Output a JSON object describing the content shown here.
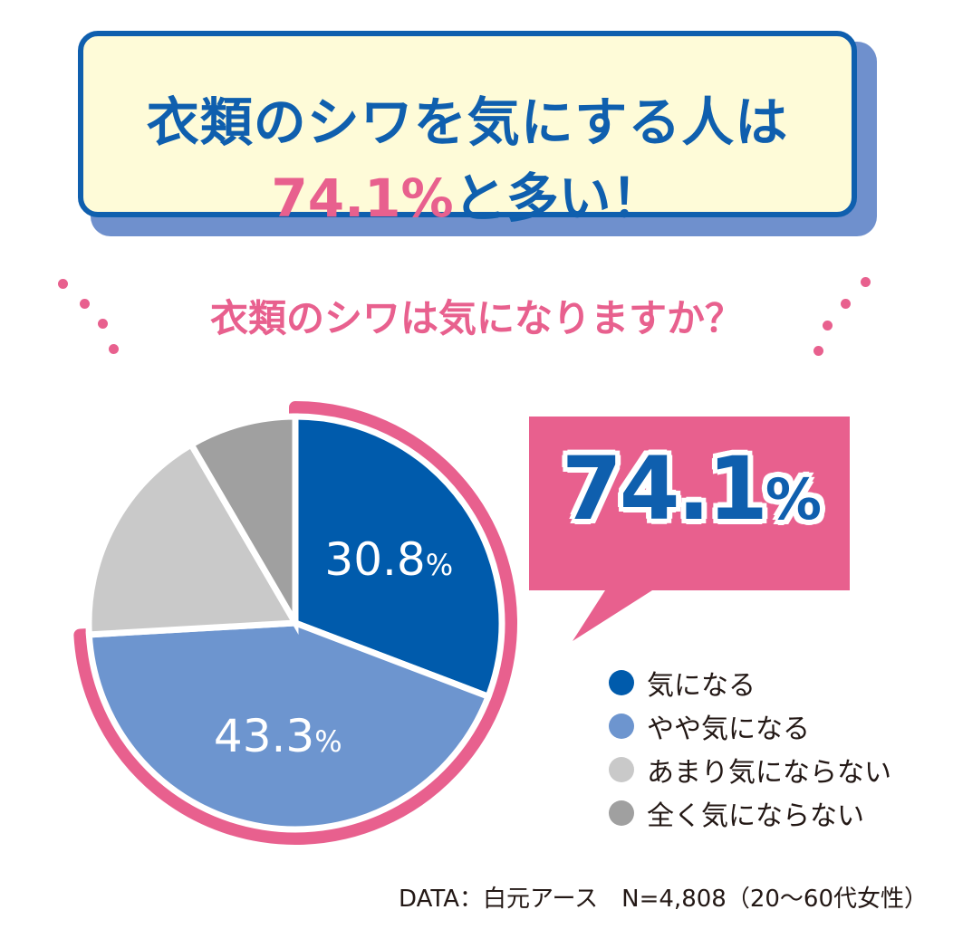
{
  "headline": {
    "line1": "衣類のシワを気にする人は",
    "pct": "74.1%",
    "line2_rest": "と多い！"
  },
  "question": "衣類のシワは気になりますか？",
  "callout": {
    "value": "74.1",
    "unit": "%"
  },
  "source": "DATA：白元アース　N=4,808（20〜60代女性）",
  "chart_data": {
    "type": "pie",
    "title": "衣類のシワは気になりますか？",
    "slices": [
      {
        "label": "気になる",
        "value": 30.8,
        "value_label": "30.8",
        "color": "#005bac",
        "highlight": true
      },
      {
        "label": "やや気になる",
        "value": 43.3,
        "value_label": "43.3",
        "color": "#6d95cf",
        "highlight": true
      },
      {
        "label": "あまり気にならない",
        "value": 17.5,
        "value_label": "",
        "color": "#c9c9c9",
        "highlight": false
      },
      {
        "label": "全く気にならない",
        "value": 8.4,
        "value_label": "",
        "color": "#a0a0a0",
        "highlight": false
      }
    ],
    "highlight_color": "#e8608e",
    "legend_position": "bottom-right"
  }
}
